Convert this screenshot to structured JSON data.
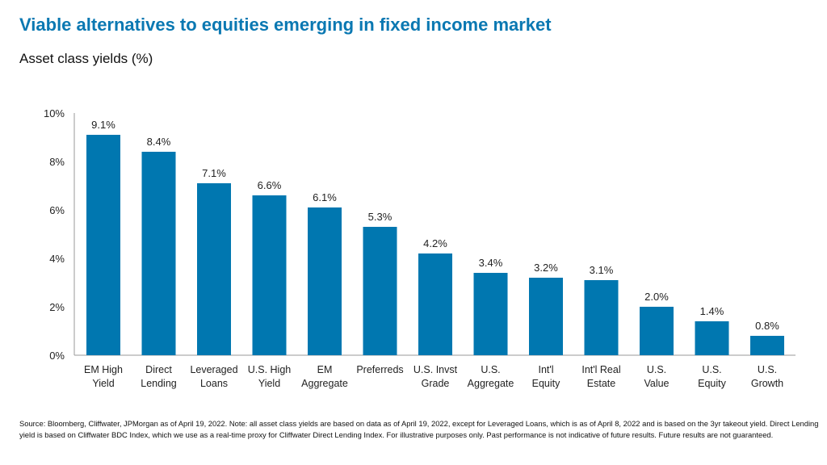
{
  "title": "Viable alternatives to equities emerging in fixed income market",
  "subtitle": "Asset class yields (%)",
  "footnote": "Source: Bloomberg, Cliffwater, JPMorgan as of April 19, 2022. Note: all asset class yields are based on data as of April 19, 2022, except for Leveraged Loans, which is as of April 8, 2022 and is based on the 3yr takeout yield. Direct Lending yield is based on Cliffwater BDC Index, which we use as a real-time proxy for Cliffwater Direct Lending Index. For illustrative purposes only. Past performance is not indicative of future results. Future results are not guaranteed.",
  "colors": {
    "bar": "#0077b0",
    "title": "#0a78b2"
  },
  "chart_data": {
    "type": "bar",
    "title": "Asset class yields (%)",
    "categories": [
      [
        "EM High",
        "Yield"
      ],
      [
        "Direct",
        "Lending"
      ],
      [
        "Leveraged",
        "Loans"
      ],
      [
        "U.S. High",
        "Yield"
      ],
      [
        "EM",
        "Aggregate"
      ],
      [
        "Preferreds"
      ],
      [
        "U.S. Invst",
        "Grade"
      ],
      [
        "U.S.",
        "Aggregate"
      ],
      [
        "Int'l",
        "Equity"
      ],
      [
        "Int'l Real",
        "Estate"
      ],
      [
        "U.S.",
        "Value"
      ],
      [
        "U.S.",
        "Equity"
      ],
      [
        "U.S.",
        "Growth"
      ]
    ],
    "values": [
      9.1,
      8.4,
      7.1,
      6.6,
      6.1,
      5.3,
      4.2,
      3.4,
      3.2,
      3.1,
      2.0,
      1.4,
      0.8
    ],
    "data_labels": [
      "9.1%",
      "8.4%",
      "7.1%",
      "6.6%",
      "6.1%",
      "5.3%",
      "4.2%",
      "3.4%",
      "3.2%",
      "3.1%",
      "2.0%",
      "1.4%",
      "0.8%"
    ],
    "yticks": [
      0,
      2,
      4,
      6,
      8,
      10
    ],
    "ytick_labels": [
      "0%",
      "2%",
      "4%",
      "6%",
      "8%",
      "10%"
    ],
    "ylim": [
      0,
      10
    ],
    "grid": false,
    "legend": "none"
  }
}
